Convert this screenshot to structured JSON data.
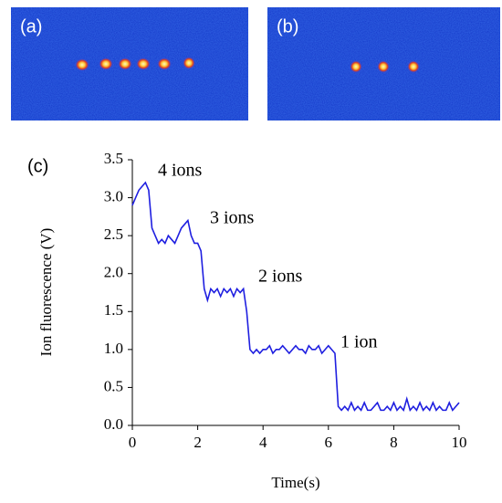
{
  "panel_labels": [
    "(a)",
    "(b)"
  ],
  "chart_data": {
    "type": "line",
    "panel_label": "(c)",
    "x_label": "Time(s)",
    "y_label": "Ion fluorescence (V)",
    "annotations": [
      "4 ions",
      "3 ions",
      "2 ions",
      "1 ion"
    ],
    "xlim": [
      0,
      10
    ],
    "ylim": [
      0,
      3.5
    ],
    "xticks": [
      0,
      2,
      4,
      6,
      8,
      10
    ],
    "yticks": [
      {
        "value": 0,
        "label": "0.0"
      },
      0.5,
      {
        "value": 1,
        "label": "1.0"
      },
      1.5,
      {
        "value": 2,
        "label": "2.0"
      },
      2.5,
      {
        "value": 3,
        "label": "3.0"
      },
      3.5
    ],
    "x": [
      0,
      0.1,
      0.2,
      0.3,
      0.4,
      0.5,
      0.6,
      0.7,
      0.8,
      0.9,
      1,
      1.1,
      1.2,
      1.3,
      1.4,
      1.5,
      1.6,
      1.7,
      1.8,
      1.9,
      2,
      2.1,
      2.2,
      2.3,
      2.4,
      2.5,
      2.6,
      2.7,
      2.8,
      2.9,
      3,
      3.1,
      3.2,
      3.3,
      3.4,
      3.5,
      3.6,
      3.7,
      3.8,
      3.9,
      4,
      4.1,
      4.2,
      4.3,
      4.4,
      4.5,
      4.6,
      4.7,
      4.8,
      4.9,
      5,
      5.1,
      5.2,
      5.3,
      5.4,
      5.5,
      5.6,
      5.7,
      5.8,
      5.9,
      6,
      6.1,
      6.2,
      6.3,
      6.4,
      6.5,
      6.6,
      6.7,
      6.8,
      6.9,
      7,
      7.1,
      7.2,
      7.3,
      7.4,
      7.5,
      7.6,
      7.7,
      7.8,
      7.9,
      8,
      8.1,
      8.2,
      8.3,
      8.4,
      8.5,
      8.6,
      8.7,
      8.8,
      8.9,
      9,
      9.1,
      9.2,
      9.3,
      9.4,
      9.5,
      9.6,
      9.7,
      9.8,
      9.9,
      10
    ],
    "series": [
      {
        "color": "#1f1fe0",
        "values": [
          2.9,
          3.0,
          3.1,
          3.15,
          3.2,
          3.1,
          2.6,
          2.5,
          2.4,
          2.45,
          2.4,
          2.5,
          2.45,
          2.4,
          2.5,
          2.6,
          2.65,
          2.7,
          2.5,
          2.4,
          2.4,
          2.3,
          1.8,
          1.65,
          1.8,
          1.75,
          1.8,
          1.7,
          1.8,
          1.75,
          1.8,
          1.7,
          1.8,
          1.75,
          1.8,
          1.5,
          1.0,
          0.95,
          1.0,
          0.95,
          1.0,
          1.0,
          1.05,
          0.95,
          1.0,
          1.0,
          1.05,
          1.0,
          0.95,
          1.0,
          1.05,
          1.0,
          1.0,
          0.95,
          1.05,
          1.0,
          1.0,
          1.05,
          0.95,
          1.0,
          1.05,
          1.0,
          0.95,
          0.25,
          0.2,
          0.25,
          0.2,
          0.3,
          0.2,
          0.25,
          0.2,
          0.3,
          0.2,
          0.2,
          0.25,
          0.3,
          0.2,
          0.2,
          0.25,
          0.2,
          0.3,
          0.2,
          0.25,
          0.2,
          0.35,
          0.2,
          0.25,
          0.2,
          0.3,
          0.2,
          0.25,
          0.2,
          0.3,
          0.2,
          0.25,
          0.2,
          0.2,
          0.3,
          0.2,
          0.25,
          0.3
        ]
      }
    ]
  }
}
